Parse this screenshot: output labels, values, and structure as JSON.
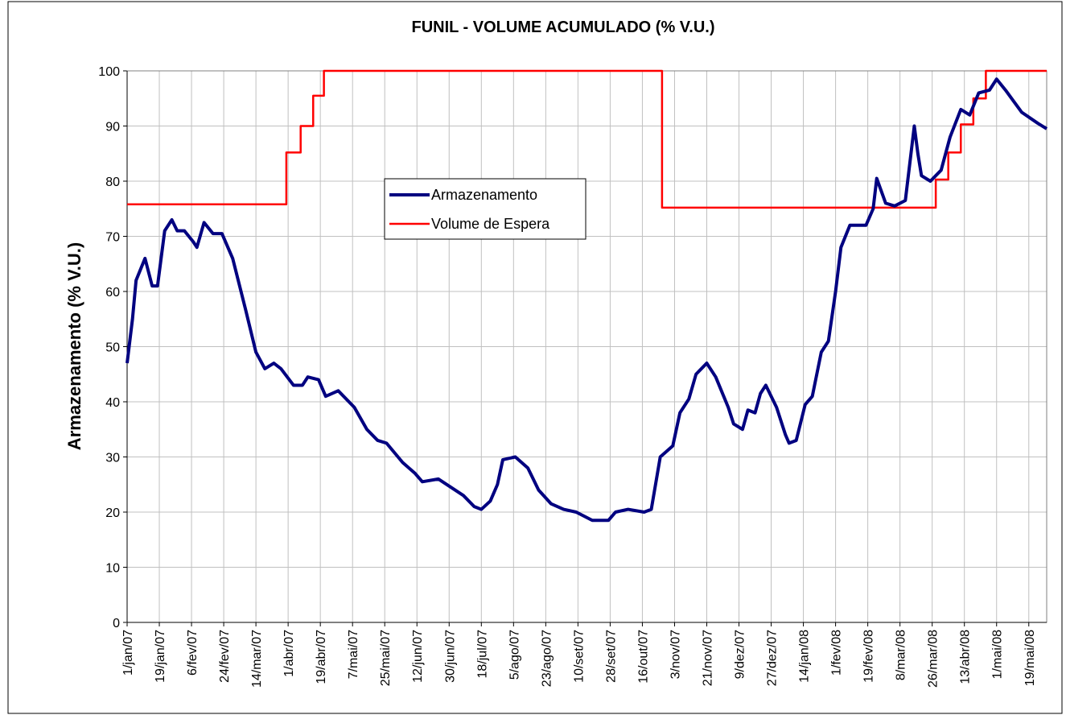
{
  "chart_data": {
    "type": "line",
    "title": "FUNIL - VOLUME ACUMULADO (% V.U.)",
    "y_label": "Armazenamento (% V.U.)",
    "xlim": [
      "2007-01-01",
      "2008-05-29"
    ],
    "xticks": [
      {
        "value": "2007-01-01",
        "label": "1/jan/07"
      },
      {
        "value": "2007-01-19",
        "label": "19/jan/07"
      },
      {
        "value": "2007-02-06",
        "label": "6/fev/07"
      },
      {
        "value": "2007-02-24",
        "label": "24/fev/07"
      },
      {
        "value": "2007-03-14",
        "label": "14/mar/07"
      },
      {
        "value": "2007-04-01",
        "label": "1/abr/07"
      },
      {
        "value": "2007-04-19",
        "label": "19/abr/07"
      },
      {
        "value": "2007-05-07",
        "label": "7/mai/07"
      },
      {
        "value": "2007-05-25",
        "label": "25/mai/07"
      },
      {
        "value": "2007-06-12",
        "label": "12/jun/07"
      },
      {
        "value": "2007-06-30",
        "label": "30/jun/07"
      },
      {
        "value": "2007-07-18",
        "label": "18/jul/07"
      },
      {
        "value": "2007-08-05",
        "label": "5/ago/07"
      },
      {
        "value": "2007-08-23",
        "label": "23/ago/07"
      },
      {
        "value": "2007-09-10",
        "label": "10/set/07"
      },
      {
        "value": "2007-09-28",
        "label": "28/set/07"
      },
      {
        "value": "2007-10-16",
        "label": "16/out/07"
      },
      {
        "value": "2007-11-03",
        "label": "3/nov/07"
      },
      {
        "value": "2007-11-21",
        "label": "21/nov/07"
      },
      {
        "value": "2007-12-09",
        "label": "9/dez/07"
      },
      {
        "value": "2007-12-27",
        "label": "27/dez/07"
      },
      {
        "value": "2008-01-14",
        "label": "14/jan/08"
      },
      {
        "value": "2008-02-01",
        "label": "1/fev/08"
      },
      {
        "value": "2008-02-19",
        "label": "19/fev/08"
      },
      {
        "value": "2008-03-08",
        "label": "8/mar/08"
      },
      {
        "value": "2008-03-26",
        "label": "26/mar/08"
      },
      {
        "value": "2008-04-13",
        "label": "13/abr/08"
      },
      {
        "value": "2008-05-01",
        "label": "1/mai/08"
      },
      {
        "value": "2008-05-19",
        "label": "19/mai/08"
      }
    ],
    "ylim": [
      0,
      100
    ],
    "yticks": [
      0,
      10,
      20,
      30,
      40,
      50,
      60,
      70,
      80,
      90,
      100
    ],
    "grid": true,
    "legend": "center",
    "series": [
      {
        "name": "Armazenamento",
        "color": "#000080",
        "x": [
          "2007-01-01",
          "2007-01-04",
          "2007-01-06",
          "2007-01-11",
          "2007-01-15",
          "2007-01-18",
          "2007-01-22",
          "2007-01-26",
          "2007-01-29",
          "2007-02-02",
          "2007-02-07",
          "2007-02-09",
          "2007-02-13",
          "2007-02-18",
          "2007-02-23",
          "2007-03-01",
          "2007-03-08",
          "2007-03-14",
          "2007-03-19",
          "2007-03-24",
          "2007-03-28",
          "2007-04-04",
          "2007-04-09",
          "2007-04-12",
          "2007-04-18",
          "2007-04-22",
          "2007-04-29",
          "2007-05-08",
          "2007-05-15",
          "2007-05-21",
          "2007-05-26",
          "2007-06-04",
          "2007-06-11",
          "2007-06-15",
          "2007-06-24",
          "2007-07-01",
          "2007-07-08",
          "2007-07-14",
          "2007-07-18",
          "2007-07-23",
          "2007-07-27",
          "2007-07-30",
          "2007-08-06",
          "2007-08-13",
          "2007-08-19",
          "2007-08-26",
          "2007-09-02",
          "2007-09-09",
          "2007-09-18",
          "2007-09-27",
          "2007-10-01",
          "2007-10-08",
          "2007-10-17",
          "2007-10-21",
          "2007-10-26",
          "2007-11-02",
          "2007-11-06",
          "2007-11-11",
          "2007-11-15",
          "2007-11-21",
          "2007-11-26",
          "2007-12-03",
          "2007-12-06",
          "2007-12-11",
          "2007-12-14",
          "2007-12-18",
          "2007-12-21",
          "2007-12-24",
          "2007-12-30",
          "2008-01-04",
          "2008-01-06",
          "2008-01-10",
          "2008-01-15",
          "2008-01-19",
          "2008-01-24",
          "2008-01-28",
          "2008-02-01",
          "2008-02-04",
          "2008-02-09",
          "2008-02-13",
          "2008-02-18",
          "2008-02-22",
          "2008-02-24",
          "2008-02-29",
          "2008-03-05",
          "2008-03-11",
          "2008-03-16",
          "2008-03-18",
          "2008-03-20",
          "2008-03-25",
          "2008-03-31",
          "2008-04-05",
          "2008-04-11",
          "2008-04-16",
          "2008-04-21",
          "2008-04-27",
          "2008-05-01",
          "2008-05-06",
          "2008-05-15",
          "2008-05-24",
          "2008-05-29"
        ],
        "values": [
          47,
          55,
          62,
          66,
          61,
          61,
          71,
          73,
          71,
          71,
          69,
          68,
          72.5,
          70.5,
          70.5,
          66,
          57,
          49,
          46,
          47,
          46,
          43,
          43,
          44.5,
          44,
          41,
          42,
          39,
          35,
          33,
          32.5,
          29,
          27,
          25.5,
          26,
          24.5,
          23,
          21,
          20.5,
          22,
          25,
          29.5,
          30,
          28,
          24,
          21.5,
          20.5,
          20,
          18.5,
          18.5,
          20,
          20.5,
          20,
          20.5,
          30,
          32,
          38,
          40.5,
          45,
          47,
          44.5,
          39,
          36,
          35,
          38.5,
          38,
          41.5,
          43,
          39,
          34,
          32.5,
          33,
          39.5,
          41,
          49,
          51,
          60,
          68,
          72,
          72,
          72,
          75,
          80.5,
          76,
          75.5,
          76.5,
          90,
          85,
          81,
          80,
          82,
          88,
          93,
          92,
          96,
          96.5,
          98.5,
          96.5,
          92.5,
          90.5,
          89.5
        ]
      },
      {
        "name": "Volume de Espera",
        "color": "#ff0000",
        "x": [
          "2007-01-01",
          "2007-03-31",
          "2007-03-31",
          "2007-04-08",
          "2007-04-08",
          "2007-04-15",
          "2007-04-15",
          "2007-04-21",
          "2007-04-21",
          "2007-10-27",
          "2007-10-27",
          "2008-03-28",
          "2008-03-28",
          "2008-04-04",
          "2008-04-04",
          "2008-04-11",
          "2008-04-11",
          "2008-04-18",
          "2008-04-18",
          "2008-04-25",
          "2008-04-25",
          "2008-05-29"
        ],
        "values": [
          75.8,
          75.8,
          85.2,
          85.2,
          90,
          90,
          95.5,
          95.5,
          100,
          100,
          75.2,
          75.2,
          80.3,
          80.3,
          85.2,
          85.2,
          90.3,
          90.3,
          95,
          95,
          100,
          100
        ]
      }
    ]
  }
}
